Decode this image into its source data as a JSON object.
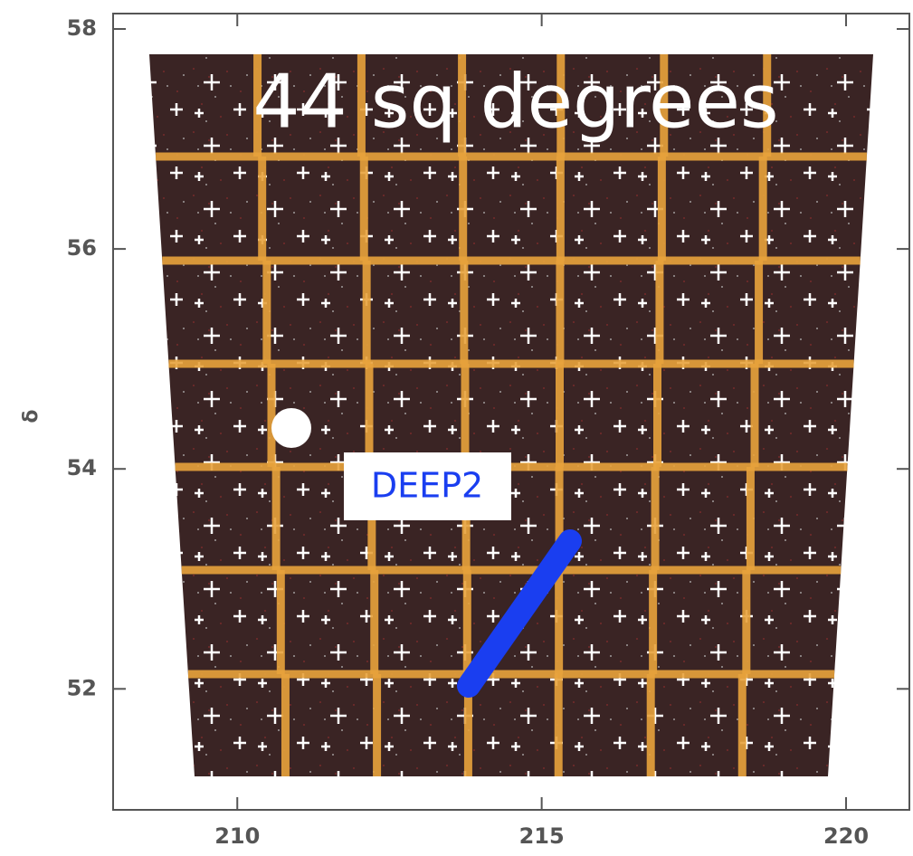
{
  "chart_data": {
    "type": "map",
    "title": "44 sq degrees",
    "annotation": "DEEP2",
    "ylabel": "δ",
    "xlim": [
      207.96,
      221.04
    ],
    "ylim": [
      50.9,
      58.14
    ],
    "xticks": [
      210,
      215,
      220
    ],
    "yticks": [
      52,
      54,
      56,
      58
    ]
  }
}
